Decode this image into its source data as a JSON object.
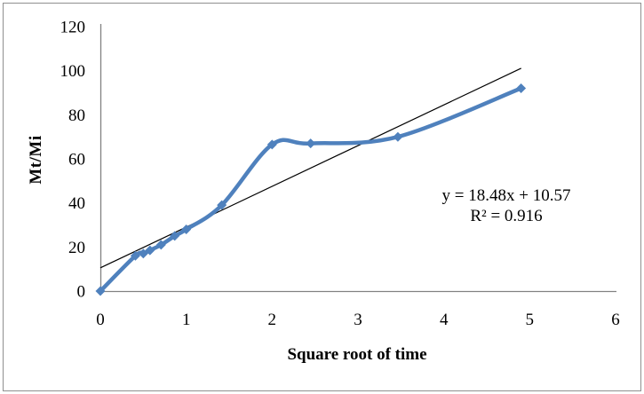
{
  "colors": {
    "series_blue": "#4F81BD",
    "trendline_black": "#000000",
    "axis_gray": "#828282",
    "frame_border_gray": "#8f8f8f",
    "text_black": "#000000",
    "background_white": "#ffffff"
  },
  "chart_data": {
    "type": "line",
    "title": "",
    "xlabel": "Square root of time",
    "ylabel": "Mt/Mi",
    "x": [
      0,
      0.408,
      0.5,
      0.577,
      0.707,
      0.866,
      1.0,
      1.414,
      2.0,
      2.449,
      3.464,
      4.899
    ],
    "y": [
      0,
      16,
      17,
      18.5,
      21,
      25,
      28,
      39,
      66.5,
      67,
      70,
      92
    ],
    "marker": "diamond",
    "smooth": true,
    "grid": false,
    "legend_position": "none",
    "xlim": [
      0,
      6
    ],
    "ylim": [
      0,
      120
    ],
    "x_ticks": [
      "0",
      "1",
      "2",
      "3",
      "4",
      "5",
      "6"
    ],
    "x_tick_values": [
      0,
      1,
      2,
      3,
      4,
      5,
      6
    ],
    "y_ticks": [
      "0",
      "20",
      "40",
      "60",
      "80",
      "100",
      "120"
    ],
    "y_tick_values": [
      0,
      20,
      40,
      60,
      80,
      100,
      120
    ],
    "trendline": {
      "type": "linear",
      "slope": 18.48,
      "intercept": 10.57,
      "x_start": 0,
      "x_end": 4.9
    },
    "annotation": {
      "line1": "y = 18.48x + 10.57",
      "line2": "R² = 0.916"
    }
  }
}
